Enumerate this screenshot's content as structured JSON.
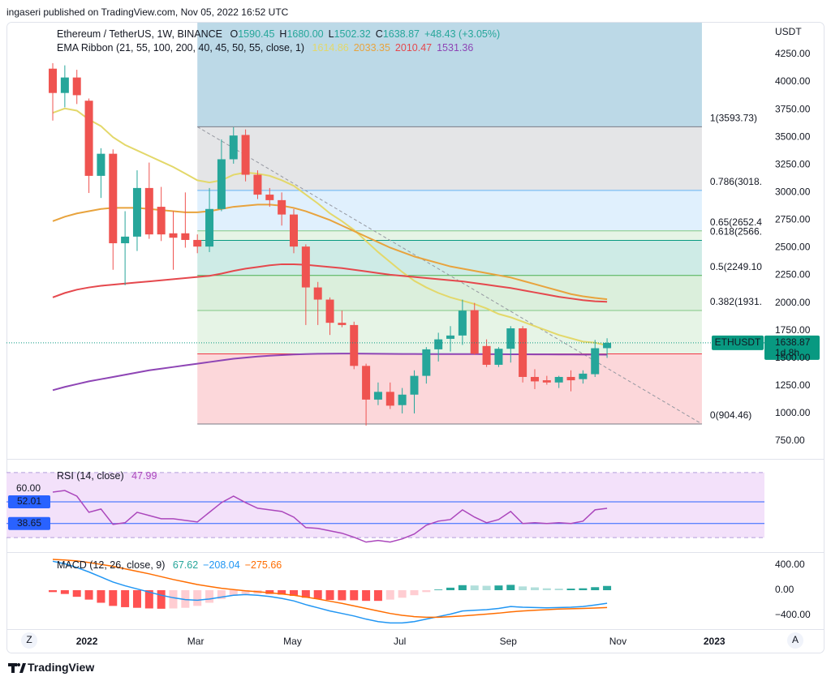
{
  "header": {
    "published": "ingaseri published on TradingView.com, Nov 05, 2022 16:52 UTC"
  },
  "controls": {
    "left": "Z",
    "right": "A"
  },
  "footer": {
    "brand": "TradingView"
  },
  "chart_data": [
    {
      "type": "candlestick",
      "title": "Ethereum / TetherUS, 1W, BINANCE",
      "ohlc": [
        {
          "key": "O",
          "value": "1590.45"
        },
        {
          "key": "H",
          "value": "1680.00"
        },
        {
          "key": "L",
          "value": "1502.32"
        },
        {
          "key": "C",
          "value": "1638.87"
        }
      ],
      "change": "+48.43 (+3.05%)",
      "y_unit": "USDT",
      "x": [
        0,
        1,
        2,
        3,
        4,
        5,
        6,
        7,
        8,
        9,
        10,
        11,
        12,
        13,
        14,
        15,
        16,
        17,
        18,
        19,
        20,
        21,
        22,
        23,
        24,
        25,
        26,
        27,
        28,
        29,
        30,
        31,
        32,
        33,
        34,
        35,
        36,
        37,
        38,
        39,
        40,
        41,
        42,
        43,
        44,
        45,
        46
      ],
      "open": [
        4120,
        3900,
        4040,
        3830,
        3150,
        3350,
        2540,
        2600,
        3040,
        2870,
        2630,
        2630,
        2570,
        2510,
        2850,
        3300,
        3520,
        3160,
        2980,
        2930,
        2800,
        2510,
        2140,
        2030,
        1820,
        1800,
        1430,
        1125,
        1195,
        1075,
        1170,
        1340,
        1580,
        1675,
        1705,
        1935,
        1610,
        1440,
        1585,
        1770,
        1330,
        1300,
        1280,
        1330,
        1310,
        1355,
        1590.45
      ],
      "high": [
        4170,
        4150,
        4110,
        3850,
        3400,
        3390,
        2830,
        3200,
        3270,
        3050,
        2830,
        3000,
        2620,
        3040,
        3480,
        3590,
        3570,
        3200,
        3040,
        3000,
        2850,
        2530,
        2190,
        2050,
        1930,
        1830,
        1450,
        1280,
        1280,
        1230,
        1390,
        1600,
        1730,
        1790,
        2030,
        2000,
        1670,
        1600,
        1790,
        1790,
        1400,
        1340,
        1340,
        1390,
        1390,
        1665,
        1680
      ],
      "low": [
        3650,
        3770,
        3800,
        2995,
        2950,
        2300,
        2160,
        2470,
        2580,
        2560,
        2300,
        2500,
        2450,
        2460,
        2830,
        3260,
        3100,
        2940,
        2870,
        2700,
        2450,
        1800,
        1800,
        1710,
        1780,
        1400,
        890,
        1075,
        1040,
        1000,
        1000,
        1270,
        1470,
        1560,
        1620,
        1530,
        1420,
        1420,
        1460,
        1280,
        1220,
        1260,
        1230,
        1200,
        1270,
        1330,
        1502.32
      ],
      "close": [
        3900,
        4040,
        3880,
        3150,
        3350,
        2540,
        2600,
        3040,
        2620,
        2620,
        2590,
        2570,
        2510,
        2850,
        3300,
        3515,
        3160,
        2980,
        2930,
        2800,
        2510,
        2140,
        2030,
        1820,
        1800,
        1430,
        1125,
        1195,
        1070,
        1170,
        1340,
        1580,
        1670,
        1705,
        1930,
        1540,
        1440,
        1585,
        1770,
        1330,
        1290,
        1280,
        1330,
        1300,
        1360,
        1590,
        1638.87
      ],
      "up_color": "#26a69a",
      "down_color": "#ef5350",
      "ema": {
        "name": "EMA Ribbon (21, 55, 100, 200, 40, 45, 50, 55, close, 1)",
        "series": [
          {
            "color": "#e3d86a",
            "values": [
              3720,
              3760,
              3740,
              3660,
              3600,
              3500,
              3430,
              3380,
              3330,
              3280,
              3230,
              3170,
              3110,
              3090,
              3110,
              3160,
              3180,
              3170,
              3150,
              3110,
              3060,
              2980,
              2900,
              2810,
              2740,
              2660,
              2560,
              2460,
              2370,
              2280,
              2200,
              2140,
              2090,
              2050,
              2020,
              1990,
              1950,
              1900,
              1870,
              1830,
              1790,
              1750,
              1710,
              1680,
              1650,
              1640,
              1614.86
            ]
          },
          {
            "color": "#e8a33d",
            "values": [
              2740,
              2780,
              2810,
              2830,
              2850,
              2860,
              2860,
              2860,
              2850,
              2840,
              2830,
              2820,
              2820,
              2830,
              2850,
              2870,
              2880,
              2890,
              2890,
              2880,
              2860,
              2830,
              2790,
              2750,
              2700,
              2650,
              2600,
              2550,
              2500,
              2460,
              2420,
              2390,
              2360,
              2330,
              2310,
              2290,
              2270,
              2250,
              2230,
              2200,
              2170,
              2140,
              2110,
              2080,
              2060,
              2045,
              2033.35
            ]
          },
          {
            "color": "#e5484d",
            "values": [
              2050,
              2090,
              2120,
              2140,
              2155,
              2165,
              2175,
              2185,
              2195,
              2205,
              2215,
              2225,
              2235,
              2245,
              2265,
              2290,
              2310,
              2325,
              2340,
              2350,
              2350,
              2345,
              2335,
              2325,
              2315,
              2300,
              2285,
              2270,
              2255,
              2245,
              2235,
              2225,
              2215,
              2205,
              2195,
              2180,
              2165,
              2150,
              2135,
              2115,
              2095,
              2075,
              2055,
              2040,
              2025,
              2015,
              2010.47
            ]
          },
          {
            "color": "#8e45b5",
            "values": [
              1210,
              1240,
              1265,
              1290,
              1310,
              1330,
              1350,
              1370,
              1390,
              1405,
              1420,
              1435,
              1450,
              1465,
              1480,
              1495,
              1505,
              1515,
              1522,
              1528,
              1533,
              1537,
              1540,
              1541,
              1542,
              1542,
              1541,
              1540,
              1539,
              1538,
              1538,
              1537,
              1537,
              1537,
              1537,
              1537,
              1536,
              1536,
              1535,
              1535,
              1534,
              1534,
              1533,
              1533,
              1532,
              1532,
              1531.36
            ]
          }
        ]
      },
      "fib": {
        "x_start": 12,
        "x_end": 53.87,
        "top_color": "#bcd9e7",
        "trend_color": "#9598a1",
        "levels": [
          {
            "value": 3593.73,
            "label": "1(3593.73)",
            "color": "#787b86"
          },
          {
            "value": 3018.23,
            "label": "0.786(3018.",
            "color": "#64b5f6"
          },
          {
            "value": 2652.49,
            "label": "0.65(2652.4",
            "color": "#81c784"
          },
          {
            "value": 2566.43,
            "label": "0.618(2566.",
            "color": "#089981"
          },
          {
            "value": 2249.1,
            "label": "0.5(2249.10",
            "color": "#4caf50"
          },
          {
            "value": 1931.76,
            "label": "0.382(1931.",
            "color": "#81c784"
          },
          {
            "value": 1539.12,
            "label": null,
            "color": "#f23645"
          },
          {
            "value": 904.46,
            "label": "0(904.46)",
            "color": "#787b86"
          }
        ]
      },
      "price_tag": {
        "symbol": "ETHUSDT",
        "countdown": "1d 8h",
        "color": "#089981"
      },
      "ylim": [
        596,
        4536
      ],
      "yticks": [
        {
          "value": 750,
          "label": "750.00"
        },
        {
          "value": 1000,
          "label": "1000.00"
        },
        {
          "value": 1250,
          "label": "1250.00"
        },
        {
          "value": 1500,
          "label": "1500.00"
        },
        {
          "value": 1750,
          "label": "1750.00"
        },
        {
          "value": 2000,
          "label": "2000.00"
        },
        {
          "value": 2250,
          "label": "2250.00"
        },
        {
          "value": 2500,
          "label": "2500.00"
        },
        {
          "value": 2750,
          "label": "2750.00"
        },
        {
          "value": 3000,
          "label": "3000.00"
        },
        {
          "value": 3250,
          "label": "3250.00"
        },
        {
          "value": 3500,
          "label": "3500.00"
        },
        {
          "value": 3750,
          "label": "3750.00"
        },
        {
          "value": 4000,
          "label": "4000.00"
        },
        {
          "value": 4250,
          "label": "4250.00"
        }
      ],
      "xlim": [
        -3.84,
        59.06
      ],
      "xticks": [
        {
          "value": 2.83,
          "label": "2022"
        },
        {
          "value": 11.86,
          "label": "Mar"
        },
        {
          "value": 19.9,
          "label": "May"
        },
        {
          "value": 28.8,
          "label": "Jul"
        },
        {
          "value": 37.8,
          "label": "Sep"
        },
        {
          "value": 46.9,
          "label": "Nov"
        },
        {
          "value": 54.9,
          "label": "2023"
        }
      ]
    },
    {
      "type": "line",
      "title": "RSI (14, close)",
      "color": "#ab47bc",
      "values": [
        57.95,
        58.94,
        55.48,
        45.57,
        47.55,
        38.15,
        39.14,
        45.57,
        43.59,
        41.61,
        41.61,
        40.62,
        39.63,
        45.57,
        51.51,
        55.48,
        51.51,
        48.05,
        47.06,
        46.07,
        42.6,
        36.17,
        35.67,
        34.19,
        32.7,
        30.23,
        27.26,
        28.25,
        27.26,
        29.24,
        32.2,
        37.65,
        40.13,
        41.12,
        47.06,
        42.6,
        39.14,
        41.12,
        46.07,
        38.65,
        39.14,
        38.65,
        39.14,
        38.65,
        40.13,
        47.06,
        47.99
      ],
      "band": [
        30,
        70
      ],
      "band_color": "#f3e1fa",
      "band_line_color": "#b39ddb",
      "hlines": [
        {
          "value": 52.01,
          "label": "52.01",
          "color": "#2962ff"
        },
        {
          "value": 38.65,
          "label": "38.65",
          "color": "#2962ff"
        }
      ],
      "ylim": [
        21.6,
        77.4
      ],
      "yticks": [
        {
          "value": 60,
          "label": "60.00"
        }
      ]
    },
    {
      "type": "macd",
      "title": "MACD (12, 26, close, 9)",
      "histogram": {
        "colors": {
          "up_rising": "#26a69a",
          "up_falling": "#b2dfdb",
          "down_falling": "#ff5252",
          "down_rising": "#ffcdd2"
        },
        "values": [
          -30,
          -60,
          -105,
          -150,
          -200,
          -250,
          -270,
          -280,
          -290,
          -295,
          -290,
          -280,
          -250,
          -200,
          -140,
          -90,
          -60,
          -55,
          -60,
          -70,
          -90,
          -120,
          -140,
          -155,
          -160,
          -160,
          -170,
          -170,
          -150,
          -120,
          -80,
          -30,
          10,
          40,
          80,
          75,
          70,
          75,
          85,
          60,
          45,
          30,
          25,
          25,
          30,
          48,
          67.62
        ]
      },
      "series": [
        {
          "color": "#2196f3",
          "last_label": "−208.04",
          "values": [
            460,
            420,
            360,
            290,
            210,
            130,
            70,
            20,
            -30,
            -80,
            -120,
            -150,
            -160,
            -140,
            -110,
            -80,
            -70,
            -80,
            -100,
            -130,
            -170,
            -230,
            -280,
            -330,
            -370,
            -410,
            -460,
            -500,
            -520,
            -520,
            -500,
            -460,
            -420,
            -380,
            -330,
            -320,
            -310,
            -290,
            -260,
            -270,
            -275,
            -280,
            -275,
            -270,
            -260,
            -235,
            -208.04
          ]
        },
        {
          "color": "#ff6d00",
          "last_label": "−275.66",
          "values": [
            490,
            480,
            465,
            440,
            410,
            380,
            340,
            300,
            260,
            215,
            170,
            130,
            90,
            60,
            30,
            10,
            -10,
            -25,
            -40,
            -60,
            -80,
            -110,
            -140,
            -175,
            -210,
            -250,
            -290,
            -330,
            -370,
            -400,
            -420,
            -430,
            -430,
            -420,
            -410,
            -395,
            -380,
            -365,
            -345,
            -330,
            -320,
            -310,
            -300,
            -295,
            -290,
            -283,
            -275.66
          ]
        }
      ],
      "ylim": [
        -606,
        580
      ],
      "yticks": [
        {
          "value": 400,
          "label": "400.00"
        },
        {
          "value": 0,
          "label": "0.00"
        },
        {
          "value": -400,
          "label": "−400.00"
        }
      ]
    }
  ]
}
